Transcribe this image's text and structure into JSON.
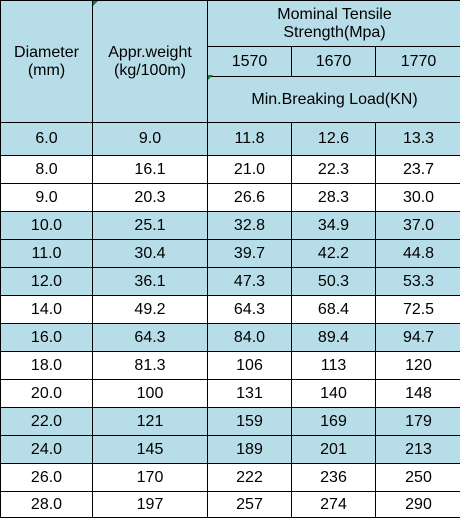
{
  "header": {
    "diameter": "Diameter\n(mm)",
    "weight": "Appr.weight\n(kg/100m)",
    "tensile": "Mominal Tensile\nStrength(Mpa)",
    "grades": [
      "1570",
      "1670",
      "1770"
    ],
    "breaking_load": "Min.Breaking Load(KN)"
  },
  "rows": [
    {
      "d": "6.0",
      "w": "9.0",
      "a": "11.8",
      "b": "12.6",
      "c": "13.3"
    },
    {
      "d": "8.0",
      "w": "16.1",
      "a": "21.0",
      "b": "22.3",
      "c": "23.7"
    },
    {
      "d": "9.0",
      "w": "20.3",
      "a": "26.6",
      "b": "28.3",
      "c": "30.0"
    },
    {
      "d": "10.0",
      "w": "25.1",
      "a": "32.8",
      "b": "34.9",
      "c": "37.0"
    },
    {
      "d": "11.0",
      "w": "30.4",
      "a": "39.7",
      "b": "42.2",
      "c": "44.8"
    },
    {
      "d": "12.0",
      "w": "36.1",
      "a": "47.3",
      "b": "50.3",
      "c": "53.3"
    },
    {
      "d": "14.0",
      "w": "49.2",
      "a": "64.3",
      "b": "68.4",
      "c": "72.5"
    },
    {
      "d": "16.0",
      "w": "64.3",
      "a": "84.0",
      "b": "89.4",
      "c": "94.7"
    },
    {
      "d": "18.0",
      "w": "81.3",
      "a": "106",
      "b": "113",
      "c": "120"
    },
    {
      "d": "20.0",
      "w": "100",
      "a": "131",
      "b": "140",
      "c": "148"
    },
    {
      "d": "22.0",
      "w": "121",
      "a": "159",
      "b": "169",
      "c": "179"
    },
    {
      "d": "24.0",
      "w": "145",
      "a": "189",
      "b": "201",
      "c": "213"
    },
    {
      "d": "26.0",
      "w": "170",
      "a": "222",
      "b": "236",
      "c": "250"
    },
    {
      "d": "28.0",
      "w": "197",
      "a": "257",
      "b": "274",
      "c": "290"
    }
  ],
  "colors": {
    "shaded": "#b7dde8",
    "plain": "#ffffff",
    "cell_marker": "#1e7a3c"
  },
  "row_shading": [
    "shaded",
    "plain",
    "plain",
    "shaded",
    "shaded",
    "shaded",
    "plain",
    "shaded",
    "plain",
    "plain",
    "shaded",
    "shaded",
    "plain",
    "plain"
  ]
}
